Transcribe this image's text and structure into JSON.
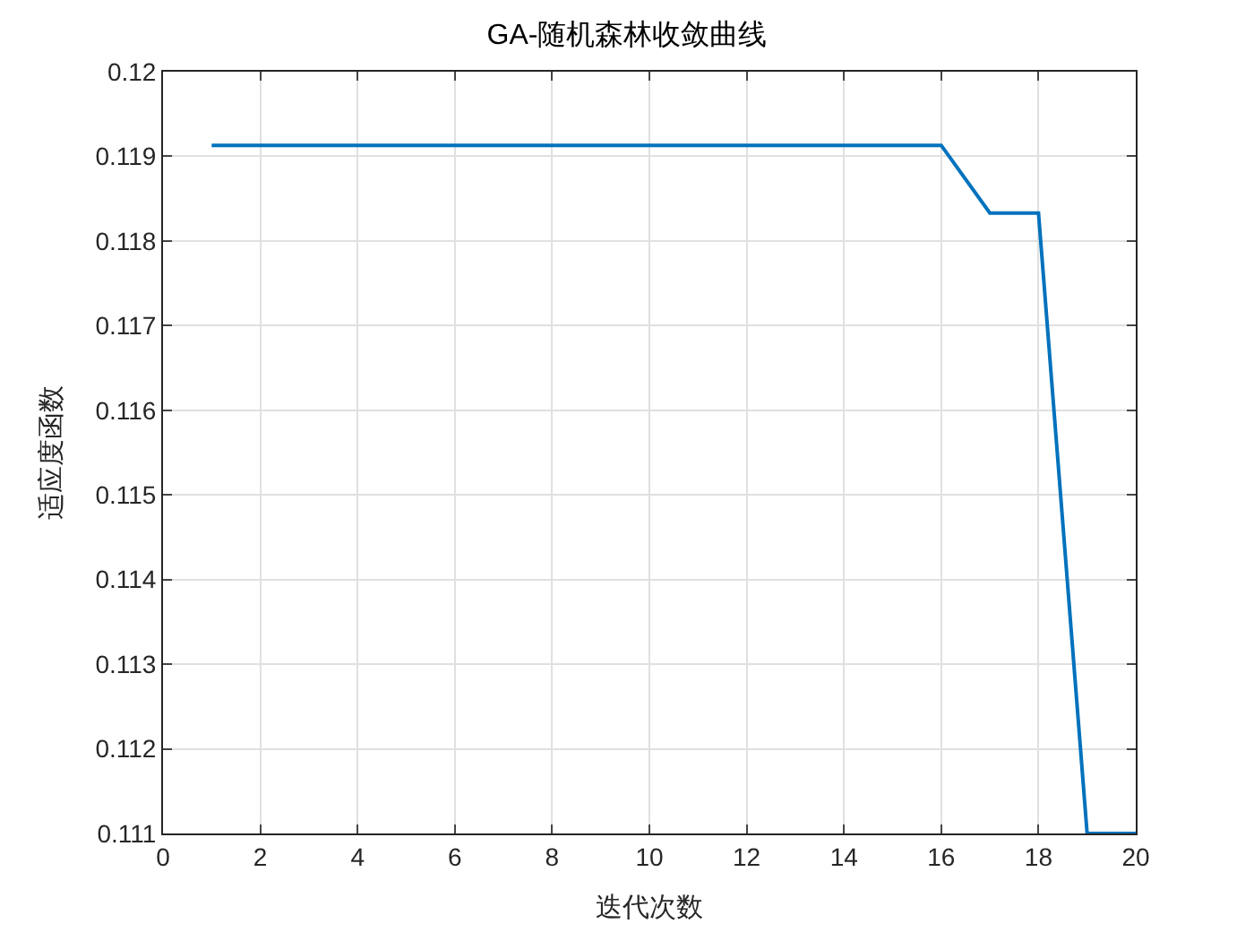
{
  "chart_data": {
    "type": "line",
    "title": "GA-随机森林收敛曲线",
    "xlabel": "迭代次数",
    "ylabel": "适应度函数",
    "x": [
      1,
      2,
      3,
      4,
      5,
      6,
      7,
      8,
      9,
      10,
      11,
      12,
      13,
      14,
      15,
      16,
      17,
      18,
      19,
      20
    ],
    "series": [
      {
        "color": "#0072bd",
        "values": [
          0.11913,
          0.11913,
          0.11913,
          0.11913,
          0.11913,
          0.11913,
          0.11913,
          0.11913,
          0.11913,
          0.11913,
          0.11913,
          0.11913,
          0.11913,
          0.11913,
          0.11913,
          0.11913,
          0.11833,
          0.11833,
          0.111,
          0.111
        ]
      }
    ],
    "xlim": [
      0,
      20
    ],
    "xticks": [
      0,
      2,
      4,
      6,
      8,
      10,
      12,
      14,
      16,
      18,
      20
    ],
    "ylim": [
      0.111,
      0.12
    ],
    "yticks": [
      0.111,
      0.112,
      0.113,
      0.114,
      0.115,
      0.116,
      0.117,
      0.118,
      0.119,
      0.12
    ],
    "grid": true,
    "legend": false,
    "marker": "none",
    "line_style": "solid"
  }
}
